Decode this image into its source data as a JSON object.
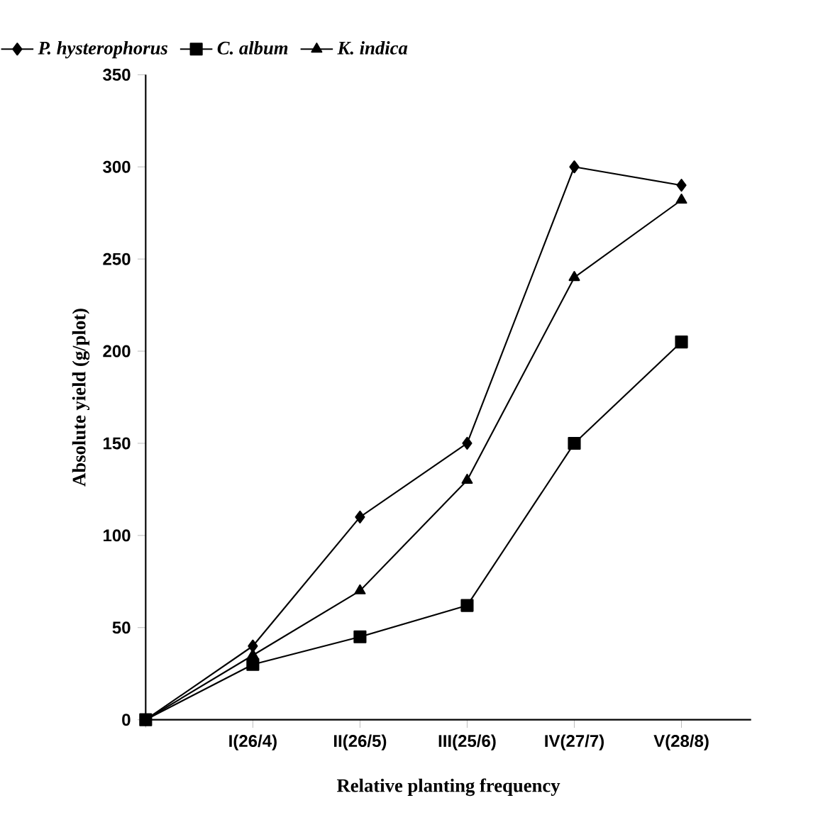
{
  "chart_data": {
    "type": "line",
    "xlabel": "Relative planting frequency",
    "ylabel": "Absolute yield (g/plot)",
    "categories": [
      null,
      "I(26/4)",
      "II(26/5)",
      "III(25/6)",
      "IV(27/7)",
      "V(28/8)"
    ],
    "ylim": [
      0,
      350
    ],
    "yticks": [
      0,
      50,
      100,
      150,
      200,
      250,
      300,
      350
    ],
    "grid": false,
    "legend": "top left",
    "line_style": "solid",
    "series": [
      {
        "name": "P. hysterophorus",
        "color": "#000000",
        "marker": "diamond",
        "values": [
          0,
          40,
          110,
          150,
          300,
          290
        ]
      },
      {
        "name": "C. album",
        "color": "#000000",
        "marker": "square",
        "values": [
          0,
          30,
          45,
          62,
          150,
          205
        ]
      },
      {
        "name": "K. indica",
        "color": "#000000",
        "marker": "triangle",
        "values": [
          0,
          35,
          70,
          130,
          240,
          282
        ]
      }
    ]
  }
}
